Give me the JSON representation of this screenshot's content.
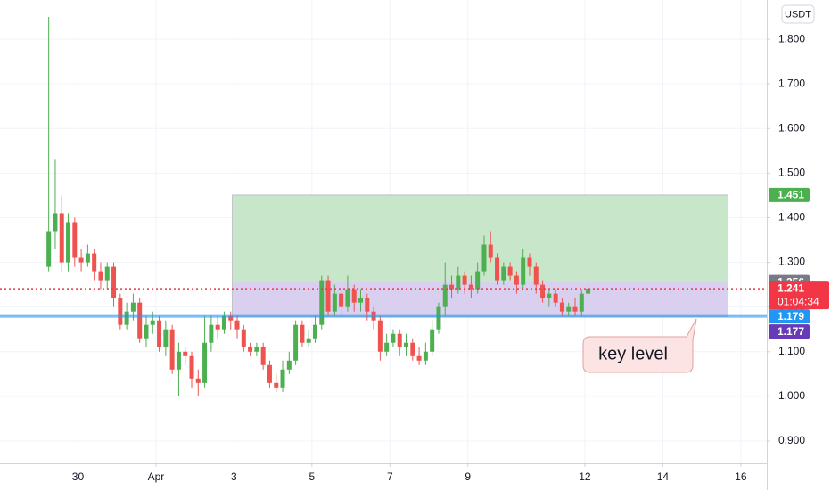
{
  "chart_data": {
    "type": "candlestick",
    "currency": "USDT",
    "x": [
      -18,
      -14,
      -10,
      -6,
      -2,
      2,
      6,
      10,
      14,
      18,
      22,
      26,
      30,
      34,
      38,
      42,
      46,
      50,
      54,
      58,
      62,
      66,
      70,
      74,
      78,
      82,
      86,
      90,
      94,
      98,
      102,
      106,
      110,
      114,
      118,
      122,
      126,
      130,
      134,
      138,
      142,
      146,
      150,
      154,
      158,
      162,
      166,
      170,
      174,
      178,
      182,
      186,
      190,
      194,
      198,
      202,
      206,
      210,
      214,
      218,
      222,
      226,
      230,
      234,
      238,
      242,
      246,
      250,
      254,
      258,
      262,
      266,
      270,
      274,
      278,
      282,
      286,
      290,
      294,
      298,
      302,
      306,
      310,
      314
    ],
    "open": [
      1.29,
      1.37,
      1.41,
      1.3,
      1.39,
      1.31,
      1.3,
      1.32,
      1.28,
      1.26,
      1.29,
      1.22,
      1.16,
      1.19,
      1.21,
      1.13,
      1.16,
      1.17,
      1.11,
      1.15,
      1.06,
      1.1,
      1.09,
      1.04,
      1.03,
      1.12,
      1.16,
      1.15,
      1.18,
      1.17,
      1.15,
      1.11,
      1.1,
      1.11,
      1.07,
      1.03,
      1.02,
      1.06,
      1.08,
      1.16,
      1.12,
      1.13,
      1.16,
      1.26,
      1.19,
      1.23,
      1.2,
      1.24,
      1.21,
      1.22,
      1.19,
      1.17,
      1.1,
      1.12,
      1.14,
      1.11,
      1.12,
      1.09,
      1.08,
      1.1,
      1.15,
      1.2,
      1.25,
      1.24,
      1.27,
      1.25,
      1.24,
      1.28,
      1.34,
      1.31,
      1.26,
      1.29,
      1.27,
      1.25,
      1.31,
      1.29,
      1.25,
      1.22,
      1.23,
      1.21,
      1.19,
      1.2,
      1.19,
      1.23
    ],
    "high": [
      1.85,
      1.53,
      1.45,
      1.41,
      1.4,
      1.33,
      1.34,
      1.33,
      1.3,
      1.3,
      1.3,
      1.23,
      1.21,
      1.23,
      1.22,
      1.18,
      1.19,
      1.18,
      1.17,
      1.16,
      1.12,
      1.11,
      1.1,
      1.06,
      1.18,
      1.18,
      1.18,
      1.19,
      1.19,
      1.18,
      1.16,
      1.12,
      1.12,
      1.12,
      1.08,
      1.05,
      1.08,
      1.1,
      1.17,
      1.17,
      1.15,
      1.18,
      1.27,
      1.27,
      1.25,
      1.24,
      1.27,
      1.25,
      1.24,
      1.23,
      1.2,
      1.18,
      1.14,
      1.15,
      1.15,
      1.14,
      1.13,
      1.11,
      1.12,
      1.17,
      1.21,
      1.3,
      1.27,
      1.29,
      1.28,
      1.27,
      1.3,
      1.36,
      1.37,
      1.32,
      1.3,
      1.3,
      1.28,
      1.33,
      1.32,
      1.3,
      1.26,
      1.24,
      1.24,
      1.22,
      1.21,
      1.22,
      1.24,
      1.25
    ],
    "low": [
      1.28,
      1.33,
      1.28,
      1.28,
      1.29,
      1.28,
      1.29,
      1.26,
      1.24,
      1.24,
      1.2,
      1.15,
      1.15,
      1.17,
      1.12,
      1.11,
      1.14,
      1.1,
      1.09,
      1.05,
      1.0,
      1.07,
      1.02,
      1.0,
      1.02,
      1.1,
      1.13,
      1.14,
      1.15,
      1.13,
      1.1,
      1.09,
      1.09,
      1.06,
      1.02,
      1.01,
      1.01,
      1.05,
      1.07,
      1.11,
      1.11,
      1.12,
      1.15,
      1.18,
      1.18,
      1.18,
      1.19,
      1.19,
      1.19,
      1.17,
      1.15,
      1.08,
      1.09,
      1.11,
      1.09,
      1.09,
      1.08,
      1.07,
      1.07,
      1.09,
      1.14,
      1.18,
      1.22,
      1.23,
      1.23,
      1.22,
      1.23,
      1.27,
      1.3,
      1.25,
      1.25,
      1.26,
      1.23,
      1.24,
      1.27,
      1.23,
      1.21,
      1.2,
      1.2,
      1.18,
      1.18,
      1.18,
      1.18,
      1.22
    ],
    "close": [
      1.37,
      1.41,
      1.3,
      1.39,
      1.31,
      1.3,
      1.32,
      1.28,
      1.26,
      1.29,
      1.22,
      1.16,
      1.19,
      1.21,
      1.13,
      1.16,
      1.17,
      1.11,
      1.15,
      1.06,
      1.1,
      1.09,
      1.04,
      1.03,
      1.12,
      1.16,
      1.15,
      1.18,
      1.17,
      1.15,
      1.11,
      1.1,
      1.11,
      1.07,
      1.03,
      1.02,
      1.06,
      1.08,
      1.16,
      1.12,
      1.13,
      1.16,
      1.26,
      1.19,
      1.23,
      1.2,
      1.24,
      1.21,
      1.22,
      1.19,
      1.17,
      1.1,
      1.12,
      1.14,
      1.11,
      1.12,
      1.09,
      1.08,
      1.1,
      1.15,
      1.2,
      1.25,
      1.24,
      1.27,
      1.25,
      1.24,
      1.28,
      1.34,
      1.31,
      1.26,
      1.29,
      1.27,
      1.25,
      1.31,
      1.29,
      1.25,
      1.22,
      1.23,
      1.21,
      1.19,
      1.2,
      1.19,
      1.23,
      1.241
    ],
    "up_color": "#4caf50",
    "down_color": "#ef5350",
    "xlim": [
      -48,
      424
    ],
    "xticks": [
      {
        "value": 0,
        "label": "30"
      },
      {
        "value": 48,
        "label": "Apr"
      },
      {
        "value": 96,
        "label": "3"
      },
      {
        "value": 144,
        "label": "5"
      },
      {
        "value": 192,
        "label": "7"
      },
      {
        "value": 240,
        "label": "9"
      },
      {
        "value": 312,
        "label": "12"
      },
      {
        "value": 360,
        "label": "14"
      },
      {
        "value": 408,
        "label": "16"
      }
    ],
    "ylim": [
      0.85,
      1.888
    ],
    "yticks": [
      {
        "value": 0.9,
        "label": "0.900"
      },
      {
        "value": 1.0,
        "label": "1.000"
      },
      {
        "value": 1.1,
        "label": "1.100"
      },
      {
        "value": 1.2,
        "label": "1.200"
      },
      {
        "value": 1.3,
        "label": "1.300"
      },
      {
        "value": 1.4,
        "label": "1.400"
      },
      {
        "value": 1.5,
        "label": "1.500"
      },
      {
        "value": 1.6,
        "label": "1.600"
      },
      {
        "value": 1.7,
        "label": "1.700"
      },
      {
        "value": 1.8,
        "label": "1.800"
      }
    ],
    "grid": true,
    "zones": [
      {
        "x": [
          95,
          400
        ],
        "y": [
          1.256,
          1.451
        ],
        "color": "#c8e6c9"
      },
      {
        "x": [
          95,
          400
        ],
        "y": [
          1.179,
          1.256
        ],
        "color": "#d9d0f0"
      }
    ],
    "levels": [
      {
        "value": 1.451,
        "color": "#4caf50"
      },
      {
        "value": 1.256,
        "color": "#787b86"
      },
      {
        "value": 1.241,
        "color": "#f23645",
        "countdown": "01:04:34",
        "line": "dotted"
      },
      {
        "value": 1.179,
        "color": "#2196f3",
        "line": "solid"
      },
      {
        "value": 1.177,
        "color": "#673ab7"
      }
    ],
    "callout": "key level"
  }
}
